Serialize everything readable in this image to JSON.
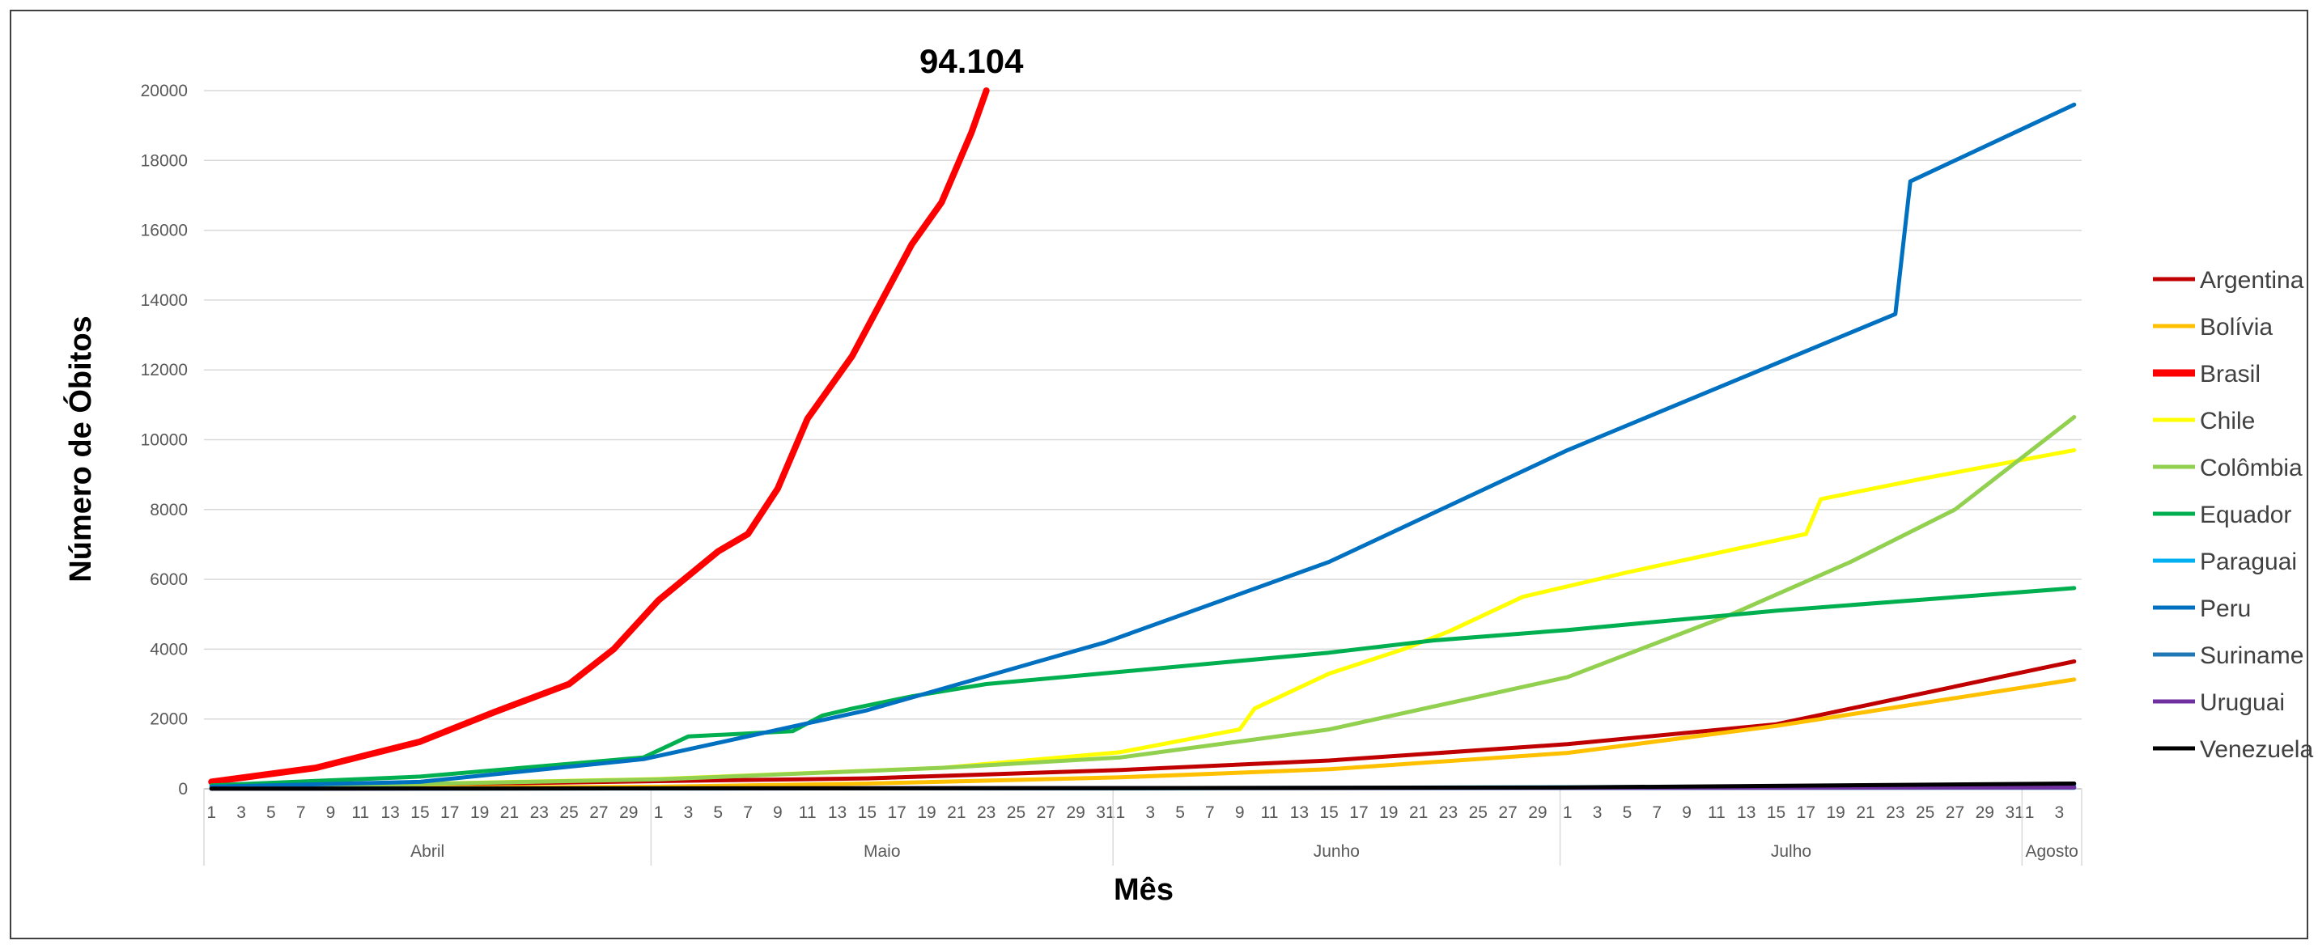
{
  "chart_data": {
    "type": "line",
    "xlabel": "Mês",
    "ylabel": "Número de Óbitos",
    "ylim": [
      0,
      20000
    ],
    "yticks": [
      0,
      2000,
      4000,
      6000,
      8000,
      10000,
      12000,
      14000,
      16000,
      18000,
      20000
    ],
    "grid": true,
    "legend_position": "right",
    "x_start": "2020-04-01",
    "x_end": "2020-08-04",
    "months": [
      {
        "label": "Abril",
        "start": "2020-04-01",
        "end": "2020-04-30"
      },
      {
        "label": "Maio",
        "start": "2020-05-01",
        "end": "2020-05-31"
      },
      {
        "label": "Junho",
        "start": "2020-06-01",
        "end": "2020-06-30"
      },
      {
        "label": "Julho",
        "start": "2020-07-01",
        "end": "2020-07-31"
      },
      {
        "label": "Agosto",
        "start": "2020-08-01",
        "end": "2020-08-04"
      }
    ],
    "annotations": [
      {
        "text": "94.104",
        "x": "2020-05-22",
        "y": 20000
      }
    ],
    "series": [
      {
        "name": "Argentina",
        "color": "#C00000",
        "points": [
          [
            "2020-04-01",
            30
          ],
          [
            "2020-05-01",
            220
          ],
          [
            "2020-05-15",
            300
          ],
          [
            "2020-06-01",
            540
          ],
          [
            "2020-06-15",
            810
          ],
          [
            "2020-07-01",
            1280
          ],
          [
            "2020-07-15",
            1850
          ],
          [
            "2020-08-04",
            3650
          ]
        ]
      },
      {
        "name": "Bolívia",
        "color": "#FFC000",
        "points": [
          [
            "2020-04-01",
            10
          ],
          [
            "2020-05-01",
            60
          ],
          [
            "2020-05-15",
            150
          ],
          [
            "2020-06-01",
            330
          ],
          [
            "2020-06-15",
            560
          ],
          [
            "2020-07-01",
            1030
          ],
          [
            "2020-07-15",
            1800
          ],
          [
            "2020-08-04",
            3130
          ]
        ]
      },
      {
        "name": "Brasil",
        "color": "#FF0000",
        "points": [
          [
            "2020-04-01",
            200
          ],
          [
            "2020-04-08",
            600
          ],
          [
            "2020-04-15",
            1350
          ],
          [
            "2020-04-20",
            2200
          ],
          [
            "2020-04-25",
            3000
          ],
          [
            "2020-04-28",
            4000
          ],
          [
            "2020-05-01",
            5400
          ],
          [
            "2020-05-05",
            6800
          ],
          [
            "2020-05-07",
            7300
          ],
          [
            "2020-05-09",
            8600
          ],
          [
            "2020-05-11",
            10600
          ],
          [
            "2020-05-14",
            12400
          ],
          [
            "2020-05-16",
            14000
          ],
          [
            "2020-05-18",
            15600
          ],
          [
            "2020-05-20",
            16800
          ],
          [
            "2020-05-22",
            18800
          ],
          [
            "2020-05-23",
            20000
          ]
        ]
      },
      {
        "name": "Chile",
        "color": "#FFFF00",
        "points": [
          [
            "2020-04-01",
            20
          ],
          [
            "2020-05-01",
            280
          ],
          [
            "2020-05-20",
            600
          ],
          [
            "2020-06-01",
            1050
          ],
          [
            "2020-06-09",
            1700
          ],
          [
            "2020-06-10",
            2300
          ],
          [
            "2020-06-15",
            3300
          ],
          [
            "2020-06-20",
            4000
          ],
          [
            "2020-06-23",
            4500
          ],
          [
            "2020-06-28",
            5500
          ],
          [
            "2020-07-05",
            6200
          ],
          [
            "2020-07-17",
            7300
          ],
          [
            "2020-07-18",
            8300
          ],
          [
            "2020-07-25",
            8900
          ],
          [
            "2020-08-04",
            9700
          ]
        ]
      },
      {
        "name": "Colômbia",
        "color": "#92D050",
        "points": [
          [
            "2020-04-01",
            20
          ],
          [
            "2020-05-01",
            270
          ],
          [
            "2020-05-20",
            600
          ],
          [
            "2020-06-01",
            900
          ],
          [
            "2020-06-15",
            1700
          ],
          [
            "2020-07-01",
            3200
          ],
          [
            "2020-07-12",
            5000
          ],
          [
            "2020-07-20",
            6500
          ],
          [
            "2020-07-27",
            8000
          ],
          [
            "2020-08-04",
            10650
          ]
        ]
      },
      {
        "name": "Equador",
        "color": "#00B050",
        "points": [
          [
            "2020-04-01",
            100
          ],
          [
            "2020-04-15",
            350
          ],
          [
            "2020-04-30",
            900
          ],
          [
            "2020-05-03",
            1500
          ],
          [
            "2020-05-10",
            1650
          ],
          [
            "2020-05-12",
            2100
          ],
          [
            "2020-05-14",
            2300
          ],
          [
            "2020-05-18",
            2650
          ],
          [
            "2020-05-23",
            3000
          ],
          [
            "2020-06-01",
            3350
          ],
          [
            "2020-06-15",
            3900
          ],
          [
            "2020-06-22",
            4250
          ],
          [
            "2020-07-01",
            4550
          ],
          [
            "2020-07-15",
            5100
          ],
          [
            "2020-08-04",
            5750
          ]
        ]
      },
      {
        "name": "Paraguai",
        "color": "#00B0F0",
        "points": [
          [
            "2020-04-01",
            5
          ],
          [
            "2020-06-01",
            15
          ],
          [
            "2020-08-04",
            80
          ]
        ]
      },
      {
        "name": "Peru",
        "color": "#0070C0",
        "points": [
          [
            "2020-04-01",
            60
          ],
          [
            "2020-04-15",
            200
          ],
          [
            "2020-04-30",
            850
          ],
          [
            "2020-05-15",
            2250
          ],
          [
            "2020-05-31",
            4200
          ],
          [
            "2020-06-15",
            6500
          ],
          [
            "2020-07-01",
            9700
          ],
          [
            "2020-07-23",
            13600
          ],
          [
            "2020-07-24",
            17400
          ],
          [
            "2020-08-01",
            19000
          ],
          [
            "2020-08-04",
            19600
          ]
        ]
      },
      {
        "name": "Suriname",
        "color": "#1F77B4",
        "points": [
          [
            "2020-04-01",
            5
          ],
          [
            "2020-08-04",
            30
          ]
        ]
      },
      {
        "name": "Uruguai",
        "color": "#7030A0",
        "points": [
          [
            "2020-04-01",
            5
          ],
          [
            "2020-08-04",
            40
          ]
        ]
      },
      {
        "name": "Venezuela",
        "color": "#000000",
        "points": [
          [
            "2020-04-01",
            5
          ],
          [
            "2020-06-01",
            20
          ],
          [
            "2020-07-01",
            40
          ],
          [
            "2020-08-04",
            150
          ]
        ]
      }
    ]
  }
}
